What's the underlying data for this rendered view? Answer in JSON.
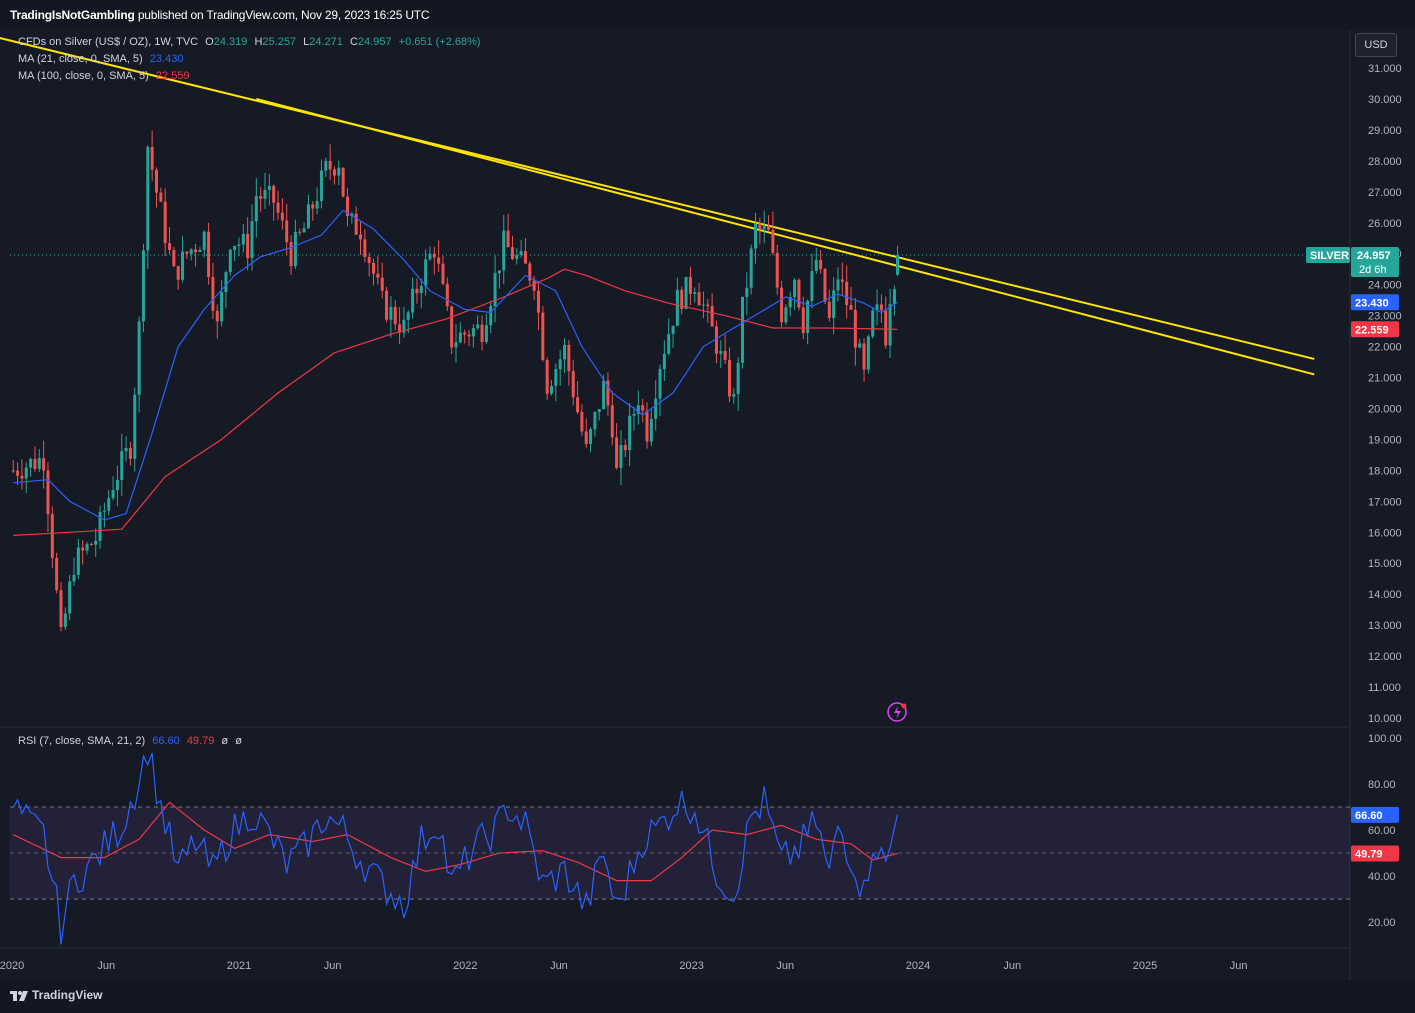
{
  "header": {
    "publisher": "TradingIsNotGambling",
    "published_text": "published on TradingView.com, Nov 29, 2023 16:25 UTC"
  },
  "legend": {
    "symbol": "CFDs on Silver (US$ / OZ), 1W, TVC",
    "o_label": "O",
    "o": "24.319",
    "h_label": "H",
    "h": "25.257",
    "l_label": "L",
    "l": "24.271",
    "c_label": "C",
    "c": "24.957",
    "change": "+0.651 (+2.68%)",
    "ma21_label": "MA (21, close, 0, SMA, 5)",
    "ma21_value": "23.430",
    "ma100_label": "MA (100, close, 0, SMA, 5)",
    "ma100_value": "22.559",
    "rsi_label": "RSI (7, close, SMA, 21, 2)",
    "rsi_value": "66.60",
    "rsi_ma_value": "49.79",
    "rsi_extra1": "ø",
    "rsi_extra2": "ø"
  },
  "currency_button": "USD",
  "price_tags": {
    "symbol_tag": "SILVER",
    "last_price": "24.957",
    "countdown": "2d 6h",
    "ma21": "23.430",
    "ma100": "22.559",
    "rsi": "66.60",
    "rsi_ma": "49.79"
  },
  "footer_logo": "TradingView",
  "colors": {
    "background": "#161a25",
    "up": "#26a69a",
    "down": "#ef5350",
    "ma21": "#2962ff",
    "ma100": "#f23645",
    "trendline": "#ffe500",
    "rsi": "#2962ff",
    "rsi_ma": "#f23645"
  },
  "chart_data": [
    {
      "type": "candlestick",
      "title": "CFDs on Silver (US$ / OZ), 1W, TVC",
      "y_ticks": [
        "10.000",
        "11.000",
        "12.000",
        "13.000",
        "14.000",
        "15.000",
        "16.000",
        "17.000",
        "18.000",
        "19.000",
        "20.000",
        "21.000",
        "22.000",
        "23.000",
        "24.000",
        "25.000",
        "26.000",
        "27.000",
        "28.000",
        "29.000",
        "30.000",
        "31.000"
      ],
      "ylim": [
        10,
        31
      ],
      "x_ticks": [
        "2020",
        "Jun",
        "2021",
        "Jun",
        "2022",
        "Jun",
        "2023",
        "Jun",
        "2024",
        "Jun",
        "2025",
        "Jun"
      ],
      "x_tick_dates": [
        "2020-01-01",
        "2020-06-01",
        "2021-01-01",
        "2021-06-01",
        "2022-01-01",
        "2022-06-01",
        "2023-01-01",
        "2023-06-01",
        "2024-01-01",
        "2024-06-01",
        "2025-01-01",
        "2025-06-01"
      ],
      "close_path": [
        [
          "2020-01-03",
          18.0
        ],
        [
          "2020-02-21",
          18.4
        ],
        [
          "2020-03-20",
          12.5
        ],
        [
          "2020-04-10",
          15.0
        ],
        [
          "2020-05-15",
          15.8
        ],
        [
          "2020-06-12",
          17.6
        ],
        [
          "2020-07-10",
          18.8
        ],
        [
          "2020-07-24",
          22.6
        ],
        [
          "2020-08-07",
          28.5
        ],
        [
          "2020-08-21",
          27.0
        ],
        [
          "2020-09-18",
          24.3
        ],
        [
          "2020-10-09",
          25.0
        ],
        [
          "2020-11-06",
          25.6
        ],
        [
          "2020-11-27",
          22.6
        ],
        [
          "2020-12-18",
          25.5
        ],
        [
          "2021-01-15",
          25.2
        ],
        [
          "2021-01-29",
          26.9
        ],
        [
          "2021-02-26",
          26.7
        ],
        [
          "2021-03-26",
          25.0
        ],
        [
          "2021-04-16",
          25.8
        ],
        [
          "2021-05-21",
          27.7
        ],
        [
          "2021-06-11",
          28.0
        ],
        [
          "2021-06-25",
          26.0
        ],
        [
          "2021-07-16",
          25.8
        ],
        [
          "2021-08-20",
          23.4
        ],
        [
          "2021-09-24",
          22.6
        ],
        [
          "2021-10-22",
          24.3
        ],
        [
          "2021-11-12",
          25.2
        ],
        [
          "2021-12-10",
          22.2
        ],
        [
          "2022-01-07",
          22.5
        ],
        [
          "2022-01-28",
          22.6
        ],
        [
          "2022-03-04",
          25.3
        ],
        [
          "2022-03-18",
          25.0
        ],
        [
          "2022-04-22",
          24.2
        ],
        [
          "2022-05-13",
          20.8
        ],
        [
          "2022-06-10",
          21.9
        ],
        [
          "2022-07-15",
          18.6
        ],
        [
          "2022-08-12",
          20.7
        ],
        [
          "2022-08-26",
          19.5
        ],
        [
          "2022-09-02",
          17.9
        ],
        [
          "2022-10-07",
          20.4
        ],
        [
          "2022-10-21",
          19.3
        ],
        [
          "2022-11-11",
          21.5
        ],
        [
          "2022-12-09",
          23.5
        ],
        [
          "2023-01-06",
          24.1
        ],
        [
          "2023-02-10",
          22.1
        ],
        [
          "2023-03-10",
          20.2
        ],
        [
          "2023-03-24",
          23.2
        ],
        [
          "2023-04-14",
          25.8
        ],
        [
          "2023-05-05",
          25.6
        ],
        [
          "2023-05-26",
          23.1
        ],
        [
          "2023-06-16",
          24.3
        ],
        [
          "2023-06-30",
          22.8
        ],
        [
          "2023-07-21",
          24.8
        ],
        [
          "2023-08-11",
          22.8
        ],
        [
          "2023-08-25",
          24.3
        ],
        [
          "2023-09-15",
          23.0
        ],
        [
          "2023-10-06",
          21.0
        ],
        [
          "2023-10-20",
          22.9
        ],
        [
          "2023-11-03",
          23.2
        ],
        [
          "2023-11-10",
          22.4
        ],
        [
          "2023-11-17",
          23.7
        ],
        [
          "2023-11-24",
          24.3
        ],
        [
          "2023-11-29",
          24.957
        ]
      ],
      "ma21_path": [
        [
          "2020-01-03",
          17.6
        ],
        [
          "2020-02-28",
          17.7
        ],
        [
          "2020-04-03",
          17.0
        ],
        [
          "2020-05-29",
          16.4
        ],
        [
          "2020-07-03",
          16.6
        ],
        [
          "2020-08-14",
          19.2
        ],
        [
          "2020-09-25",
          22.0
        ],
        [
          "2020-11-06",
          23.2
        ],
        [
          "2020-12-25",
          24.3
        ],
        [
          "2021-02-05",
          24.9
        ],
        [
          "2021-03-26",
          25.2
        ],
        [
          "2021-05-14",
          25.6
        ],
        [
          "2021-06-18",
          26.4
        ],
        [
          "2021-08-06",
          25.8
        ],
        [
          "2021-09-24",
          24.8
        ],
        [
          "2021-11-05",
          23.8
        ],
        [
          "2021-12-31",
          23.2
        ],
        [
          "2022-02-11",
          23.1
        ],
        [
          "2022-04-08",
          24.3
        ],
        [
          "2022-05-27",
          23.8
        ],
        [
          "2022-07-08",
          22.0
        ],
        [
          "2022-08-26",
          20.5
        ],
        [
          "2022-10-14",
          19.8
        ],
        [
          "2022-12-02",
          20.5
        ],
        [
          "2023-01-20",
          22.0
        ],
        [
          "2023-03-10",
          22.6
        ],
        [
          "2023-04-21",
          23.1
        ],
        [
          "2023-06-02",
          23.6
        ],
        [
          "2023-07-14",
          23.3
        ],
        [
          "2023-08-25",
          23.7
        ],
        [
          "2023-10-06",
          23.4
        ],
        [
          "2023-11-03",
          23.1
        ],
        [
          "2023-11-29",
          23.43
        ]
      ],
      "ma100_path": [
        [
          "2020-01-03",
          15.9
        ],
        [
          "2020-04-03",
          16.0
        ],
        [
          "2020-06-26",
          16.1
        ],
        [
          "2020-09-04",
          17.8
        ],
        [
          "2020-12-04",
          19.0
        ],
        [
          "2021-03-05",
          20.5
        ],
        [
          "2021-06-04",
          21.8
        ],
        [
          "2021-09-03",
          22.4
        ],
        [
          "2021-12-03",
          22.9
        ],
        [
          "2022-03-04",
          23.6
        ],
        [
          "2022-05-13",
          24.2
        ],
        [
          "2022-06-10",
          24.5
        ],
        [
          "2022-07-15",
          24.3
        ],
        [
          "2022-09-16",
          23.8
        ],
        [
          "2022-11-25",
          23.4
        ],
        [
          "2023-02-24",
          23.0
        ],
        [
          "2023-05-12",
          22.6
        ],
        [
          "2023-08-11",
          22.6
        ],
        [
          "2023-11-29",
          22.559
        ]
      ],
      "trendline_1": {
        "from": [
          "2019-12-06",
          32.0
        ],
        "to": [
          "2025-10-01",
          21.6
        ]
      },
      "trendline_2": {
        "from": [
          "2021-01-29",
          30.0
        ],
        "to": [
          "2025-10-01",
          21.1
        ]
      }
    },
    {
      "type": "line",
      "title": "RSI (7, close, SMA, 21, 2)",
      "y_ticks": [
        "20.00",
        "40.00",
        "60.00",
        "80.00",
        "100.00"
      ],
      "ylim": [
        14,
        104
      ],
      "bands": [
        30,
        50,
        70
      ],
      "rsi_path": [
        [
          "2020-01-03",
          70
        ],
        [
          "2020-01-31",
          62
        ],
        [
          "2020-02-21",
          58
        ],
        [
          "2020-03-20",
          18
        ],
        [
          "2020-04-10",
          38
        ],
        [
          "2020-05-08",
          45
        ],
        [
          "2020-06-05",
          55
        ],
        [
          "2020-06-26",
          62
        ],
        [
          "2020-07-24",
          82
        ],
        [
          "2020-08-07",
          96
        ],
        [
          "2020-08-28",
          70
        ],
        [
          "2020-09-25",
          42
        ],
        [
          "2020-10-23",
          55
        ],
        [
          "2020-11-20",
          42
        ],
        [
          "2020-12-18",
          58
        ],
        [
          "2021-01-22",
          68
        ],
        [
          "2021-02-19",
          58
        ],
        [
          "2021-03-19",
          45
        ],
        [
          "2021-04-16",
          52
        ],
        [
          "2021-05-21",
          66
        ],
        [
          "2021-06-18",
          60
        ],
        [
          "2021-07-09",
          50
        ],
        [
          "2021-08-13",
          38
        ],
        [
          "2021-09-24",
          28
        ],
        [
          "2021-10-22",
          55
        ],
        [
          "2021-11-19",
          64
        ],
        [
          "2021-12-10",
          36
        ],
        [
          "2022-01-14",
          52
        ],
        [
          "2022-02-18",
          60
        ],
        [
          "2022-03-11",
          70
        ],
        [
          "2022-04-08",
          62
        ],
        [
          "2022-05-06",
          36
        ],
        [
          "2022-06-10",
          42
        ],
        [
          "2022-07-15",
          26
        ],
        [
          "2022-08-12",
          50
        ],
        [
          "2022-09-02",
          25
        ],
        [
          "2022-10-14",
          56
        ],
        [
          "2022-11-11",
          62
        ],
        [
          "2022-12-09",
          72
        ],
        [
          "2023-01-06",
          70
        ],
        [
          "2023-02-10",
          42
        ],
        [
          "2023-03-10",
          32
        ],
        [
          "2023-04-07",
          66
        ],
        [
          "2023-04-28",
          72
        ],
        [
          "2023-05-26",
          46
        ],
        [
          "2023-06-23",
          52
        ],
        [
          "2023-07-21",
          64
        ],
        [
          "2023-08-11",
          40
        ],
        [
          "2023-08-25",
          62
        ],
        [
          "2023-09-22",
          44
        ],
        [
          "2023-10-06",
          32
        ],
        [
          "2023-10-20",
          56
        ],
        [
          "2023-11-10",
          44
        ],
        [
          "2023-11-29",
          66.6
        ]
      ],
      "rsi_ma_path": [
        [
          "2020-01-03",
          58
        ],
        [
          "2020-03-20",
          48
        ],
        [
          "2020-05-29",
          48
        ],
        [
          "2020-07-24",
          56
        ],
        [
          "2020-09-11",
          72
        ],
        [
          "2020-11-06",
          60
        ],
        [
          "2020-12-25",
          52
        ],
        [
          "2021-02-19",
          58
        ],
        [
          "2021-04-30",
          55
        ],
        [
          "2021-06-25",
          58
        ],
        [
          "2021-09-03",
          48
        ],
        [
          "2021-10-29",
          42
        ],
        [
          "2021-12-24",
          45
        ],
        [
          "2022-02-25",
          50
        ],
        [
          "2022-05-06",
          51
        ],
        [
          "2022-07-01",
          46
        ],
        [
          "2022-09-02",
          38
        ],
        [
          "2022-10-28",
          38
        ],
        [
          "2022-12-16",
          48
        ],
        [
          "2023-02-03",
          60
        ],
        [
          "2023-03-31",
          58
        ],
        [
          "2023-05-26",
          62
        ],
        [
          "2023-07-21",
          56
        ],
        [
          "2023-09-15",
          54
        ],
        [
          "2023-10-20",
          47
        ],
        [
          "2023-11-29",
          49.79
        ]
      ]
    }
  ]
}
